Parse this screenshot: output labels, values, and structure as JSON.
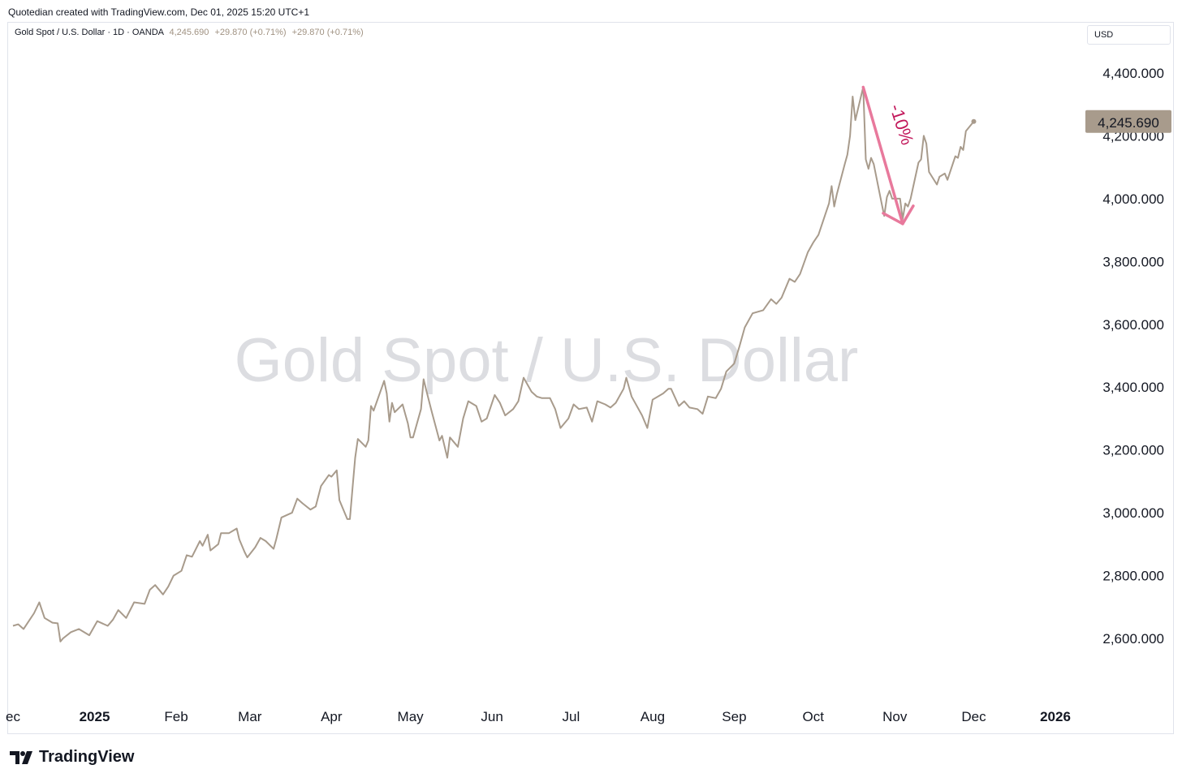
{
  "header": {
    "caption": "Quotedian created with TradingView.com, Dec 01, 2025 15:20 UTC+1"
  },
  "legend": {
    "symbol": "Gold Spot / U.S. Dollar · 1D · OANDA",
    "last": "4,245.690",
    "change": "+29.870 (+0.71%)",
    "change2": "+29.870 (+0.71%)"
  },
  "currency": "USD",
  "watermark": "Gold Spot / U.S. Dollar",
  "footer": {
    "brand": "TradingView"
  },
  "colors": {
    "line": "#a89b8c",
    "arrow": "#e8799c",
    "arrow_text": "#c2185b",
    "price_tag": "#a89b8c"
  },
  "chart_data": {
    "type": "line",
    "title": "Gold Spot / U.S. Dollar",
    "ylabel": "USD",
    "ylim": [
      2420,
      4530
    ],
    "yticks": [
      4400,
      4200,
      4000,
      3800,
      3600,
      3400,
      3200,
      3000,
      2800,
      2600
    ],
    "ytick_labels": [
      "4,400.000",
      "4,200.000",
      "4,000.000",
      "3,800.000",
      "3,600.000",
      "3,400.000",
      "3,200.000",
      "3,000.000",
      "2,800.000",
      "2,600.000"
    ],
    "xticks": [
      {
        "label": "ec",
        "date": "2024-12-01"
      },
      {
        "label": "2025",
        "date": "2025-01-01"
      },
      {
        "label": "Feb",
        "date": "2025-02-01"
      },
      {
        "label": "Mar",
        "date": "2025-03-01"
      },
      {
        "label": "Apr",
        "date": "2025-04-01"
      },
      {
        "label": "May",
        "date": "2025-05-01"
      },
      {
        "label": "Jun",
        "date": "2025-06-01"
      },
      {
        "label": "Jul",
        "date": "2025-07-01"
      },
      {
        "label": "Aug",
        "date": "2025-08-01"
      },
      {
        "label": "Sep",
        "date": "2025-09-01"
      },
      {
        "label": "Oct",
        "date": "2025-10-01"
      },
      {
        "label": "Nov",
        "date": "2025-11-01"
      },
      {
        "label": "Dec",
        "date": "2025-12-01"
      },
      {
        "label": "2026",
        "date": "2026-01-01"
      }
    ],
    "series": [
      {
        "points": [
          [
            "2024-12-01",
            2640
          ],
          [
            "2024-12-03",
            2645
          ],
          [
            "2024-12-05",
            2630
          ],
          [
            "2024-12-09",
            2680
          ],
          [
            "2024-12-11",
            2715
          ],
          [
            "2024-12-13",
            2665
          ],
          [
            "2024-12-16",
            2650
          ],
          [
            "2024-12-18",
            2648
          ],
          [
            "2024-12-19",
            2590
          ],
          [
            "2024-12-20",
            2600
          ],
          [
            "2024-12-23",
            2620
          ],
          [
            "2024-12-26",
            2630
          ],
          [
            "2024-12-30",
            2610
          ],
          [
            "2025-01-02",
            2655
          ],
          [
            "2025-01-06",
            2640
          ],
          [
            "2025-01-08",
            2660
          ],
          [
            "2025-01-10",
            2690
          ],
          [
            "2025-01-13",
            2665
          ],
          [
            "2025-01-16",
            2715
          ],
          [
            "2025-01-20",
            2710
          ],
          [
            "2025-01-22",
            2755
          ],
          [
            "2025-01-24",
            2770
          ],
          [
            "2025-01-27",
            2740
          ],
          [
            "2025-01-29",
            2765
          ],
          [
            "2025-01-31",
            2800
          ],
          [
            "2025-02-03",
            2815
          ],
          [
            "2025-02-05",
            2865
          ],
          [
            "2025-02-07",
            2860
          ],
          [
            "2025-02-10",
            2910
          ],
          [
            "2025-02-11",
            2895
          ],
          [
            "2025-02-13",
            2930
          ],
          [
            "2025-02-14",
            2880
          ],
          [
            "2025-02-17",
            2900
          ],
          [
            "2025-02-18",
            2935
          ],
          [
            "2025-02-21",
            2935
          ],
          [
            "2025-02-24",
            2950
          ],
          [
            "2025-02-25",
            2915
          ],
          [
            "2025-02-27",
            2875
          ],
          [
            "2025-02-28",
            2858
          ],
          [
            "2025-03-03",
            2890
          ],
          [
            "2025-03-05",
            2920
          ],
          [
            "2025-03-07",
            2910
          ],
          [
            "2025-03-10",
            2885
          ],
          [
            "2025-03-11",
            2915
          ],
          [
            "2025-03-13",
            2985
          ],
          [
            "2025-03-17",
            3000
          ],
          [
            "2025-03-19",
            3045
          ],
          [
            "2025-03-21",
            3030
          ],
          [
            "2025-03-24",
            3010
          ],
          [
            "2025-03-26",
            3020
          ],
          [
            "2025-03-28",
            3085
          ],
          [
            "2025-03-31",
            3120
          ],
          [
            "2025-04-01",
            3115
          ],
          [
            "2025-04-03",
            3135
          ],
          [
            "2025-04-04",
            3040
          ],
          [
            "2025-04-07",
            2980
          ],
          [
            "2025-04-08",
            2980
          ],
          [
            "2025-04-09",
            3080
          ],
          [
            "2025-04-10",
            3175
          ],
          [
            "2025-04-11",
            3235
          ],
          [
            "2025-04-14",
            3210
          ],
          [
            "2025-04-15",
            3230
          ],
          [
            "2025-04-16",
            3340
          ],
          [
            "2025-04-17",
            3325
          ],
          [
            "2025-04-21",
            3420
          ],
          [
            "2025-04-22",
            3380
          ],
          [
            "2025-04-23",
            3290
          ],
          [
            "2025-04-24",
            3350
          ],
          [
            "2025-04-25",
            3320
          ],
          [
            "2025-04-28",
            3345
          ],
          [
            "2025-04-29",
            3315
          ],
          [
            "2025-04-30",
            3285
          ],
          [
            "2025-05-01",
            3240
          ],
          [
            "2025-05-02",
            3240
          ],
          [
            "2025-05-05",
            3330
          ],
          [
            "2025-05-06",
            3425
          ],
          [
            "2025-05-07",
            3390
          ],
          [
            "2025-05-09",
            3325
          ],
          [
            "2025-05-12",
            3230
          ],
          [
            "2025-05-13",
            3245
          ],
          [
            "2025-05-15",
            3175
          ],
          [
            "2025-05-16",
            3240
          ],
          [
            "2025-05-19",
            3210
          ],
          [
            "2025-05-21",
            3300
          ],
          [
            "2025-05-23",
            3355
          ],
          [
            "2025-05-26",
            3340
          ],
          [
            "2025-05-28",
            3290
          ],
          [
            "2025-05-30",
            3300
          ],
          [
            "2025-06-02",
            3375
          ],
          [
            "2025-06-04",
            3350
          ],
          [
            "2025-06-06",
            3310
          ],
          [
            "2025-06-09",
            3330
          ],
          [
            "2025-06-11",
            3355
          ],
          [
            "2025-06-13",
            3430
          ],
          [
            "2025-06-16",
            3385
          ],
          [
            "2025-06-18",
            3370
          ],
          [
            "2025-06-20",
            3365
          ],
          [
            "2025-06-23",
            3365
          ],
          [
            "2025-06-25",
            3330
          ],
          [
            "2025-06-27",
            3270
          ],
          [
            "2025-06-30",
            3300
          ],
          [
            "2025-07-02",
            3345
          ],
          [
            "2025-07-04",
            3330
          ],
          [
            "2025-07-07",
            3335
          ],
          [
            "2025-07-09",
            3290
          ],
          [
            "2025-07-11",
            3355
          ],
          [
            "2025-07-14",
            3345
          ],
          [
            "2025-07-16",
            3335
          ],
          [
            "2025-07-18",
            3350
          ],
          [
            "2025-07-21",
            3395
          ],
          [
            "2025-07-22",
            3430
          ],
          [
            "2025-07-24",
            3370
          ],
          [
            "2025-07-28",
            3310
          ],
          [
            "2025-07-30",
            3270
          ],
          [
            "2025-08-01",
            3360
          ],
          [
            "2025-08-05",
            3380
          ],
          [
            "2025-08-07",
            3395
          ],
          [
            "2025-08-08",
            3395
          ],
          [
            "2025-08-11",
            3340
          ],
          [
            "2025-08-13",
            3355
          ],
          [
            "2025-08-15",
            3335
          ],
          [
            "2025-08-18",
            3330
          ],
          [
            "2025-08-20",
            3315
          ],
          [
            "2025-08-22",
            3370
          ],
          [
            "2025-08-25",
            3365
          ],
          [
            "2025-08-27",
            3395
          ],
          [
            "2025-08-29",
            3450
          ],
          [
            "2025-09-01",
            3475
          ],
          [
            "2025-09-03",
            3530
          ],
          [
            "2025-09-05",
            3590
          ],
          [
            "2025-09-08",
            3635
          ],
          [
            "2025-09-10",
            3640
          ],
          [
            "2025-09-12",
            3645
          ],
          [
            "2025-09-15",
            3680
          ],
          [
            "2025-09-17",
            3665
          ],
          [
            "2025-09-19",
            3685
          ],
          [
            "2025-09-22",
            3745
          ],
          [
            "2025-09-24",
            3735
          ],
          [
            "2025-09-26",
            3760
          ],
          [
            "2025-09-29",
            3830
          ],
          [
            "2025-10-01",
            3860
          ],
          [
            "2025-10-03",
            3885
          ],
          [
            "2025-10-06",
            3960
          ],
          [
            "2025-10-07",
            3985
          ],
          [
            "2025-10-08",
            4040
          ],
          [
            "2025-10-09",
            3975
          ],
          [
            "2025-10-10",
            4015
          ],
          [
            "2025-10-13",
            4110
          ],
          [
            "2025-10-14",
            4140
          ],
          [
            "2025-10-15",
            4200
          ],
          [
            "2025-10-16",
            4325
          ],
          [
            "2025-10-17",
            4250
          ],
          [
            "2025-10-20",
            4355
          ],
          [
            "2025-10-21",
            4125
          ],
          [
            "2025-10-22",
            4095
          ],
          [
            "2025-10-23",
            4130
          ],
          [
            "2025-10-24",
            4110
          ],
          [
            "2025-10-27",
            3985
          ],
          [
            "2025-10-28",
            3945
          ],
          [
            "2025-10-29",
            4005
          ],
          [
            "2025-10-30",
            4025
          ],
          [
            "2025-10-31",
            4000
          ],
          [
            "2025-11-03",
            4000
          ],
          [
            "2025-11-04",
            3935
          ],
          [
            "2025-11-05",
            3985
          ],
          [
            "2025-11-06",
            3975
          ],
          [
            "2025-11-07",
            4000
          ],
          [
            "2025-11-10",
            4115
          ],
          [
            "2025-11-11",
            4125
          ],
          [
            "2025-11-12",
            4200
          ],
          [
            "2025-11-13",
            4175
          ],
          [
            "2025-11-14",
            4085
          ],
          [
            "2025-11-17",
            4045
          ],
          [
            "2025-11-18",
            4070
          ],
          [
            "2025-11-20",
            4080
          ],
          [
            "2025-11-21",
            4060
          ],
          [
            "2025-11-24",
            4135
          ],
          [
            "2025-11-25",
            4130
          ],
          [
            "2025-11-26",
            4165
          ],
          [
            "2025-11-27",
            4155
          ],
          [
            "2025-11-28",
            4215
          ],
          [
            "2025-12-01",
            4245.69
          ]
        ]
      }
    ],
    "last_value_label": "4,245.690",
    "annotation": {
      "text": "-10%",
      "from": [
        "2025-10-20",
        4355
      ],
      "to": [
        "2025-11-04",
        3920
      ]
    }
  }
}
